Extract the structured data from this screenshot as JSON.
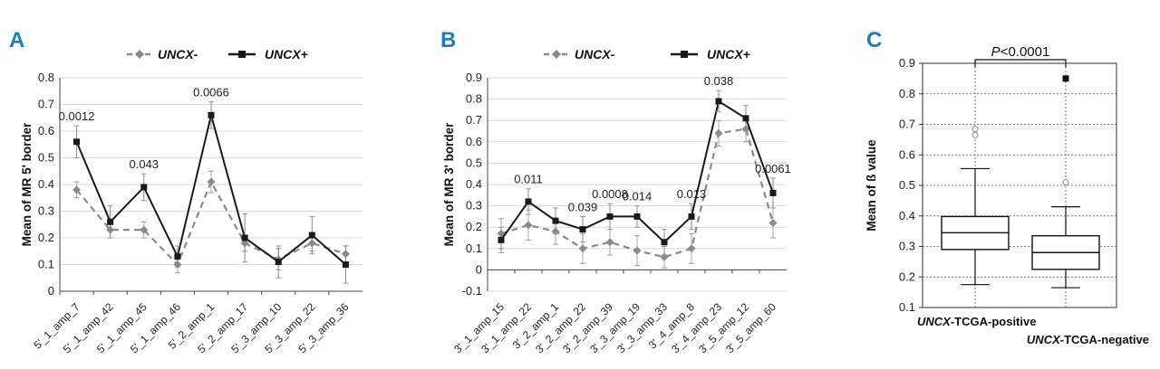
{
  "chart_data": [
    {
      "panel": "A",
      "type": "line",
      "ylabel": "Mean of MR 5' border",
      "ylim": [
        0,
        0.8
      ],
      "yticks": [
        "0",
        "0.1",
        "0.2",
        "0.3",
        "0.4",
        "0.5",
        "0.6",
        "0.7",
        "0.8"
      ],
      "yticks_values": [
        0,
        0.1,
        0.2,
        0.3,
        0.4,
        0.5,
        0.6,
        0.7,
        0.8
      ],
      "categories": [
        "5'_1_amp_7",
        "5'_1_amp_42",
        "5'_1_amp_45",
        "5'_1_amp_46",
        "5'_2_amp_1",
        "5'_2_amp_17",
        "5'_3_amp_10",
        "5'_3_amp_22",
        "5'_3_amp_36"
      ],
      "series": [
        {
          "name": "UNCX-",
          "color": "#8a8a8a",
          "dashed": true,
          "marker": "diamond",
          "values": [
            0.38,
            0.23,
            0.23,
            0.1,
            0.41,
            0.18,
            0.12,
            0.18,
            0.14
          ],
          "errors": [
            0.03,
            0.03,
            0.03,
            0.03,
            0.04,
            0.03,
            0.04,
            0.03,
            0.03
          ]
        },
        {
          "name": "UNCX+",
          "color": "#1a1a1a",
          "dashed": false,
          "marker": "square",
          "values": [
            0.56,
            0.26,
            0.39,
            0.13,
            0.66,
            0.2,
            0.11,
            0.21,
            0.1
          ],
          "errors": [
            0.06,
            0.06,
            0.05,
            0.04,
            0.05,
            0.09,
            0.06,
            0.07,
            0.07
          ]
        }
      ],
      "annotations": [
        {
          "index": 0,
          "text": "0.0012"
        },
        {
          "index": 2,
          "text": "0.043"
        },
        {
          "index": 4,
          "text": "0.0066"
        }
      ]
    },
    {
      "panel": "B",
      "type": "line",
      "ylabel": "Mean of MR 3' border",
      "ylim": [
        -0.1,
        0.9
      ],
      "yticks": [
        "-0.1",
        "0",
        "0.1",
        "0.2",
        "0.3",
        "0.4",
        "0.5",
        "0.6",
        "0.7",
        "0.8",
        "0.9"
      ],
      "yticks_values": [
        -0.1,
        0,
        0.1,
        0.2,
        0.3,
        0.4,
        0.5,
        0.6,
        0.7,
        0.8,
        0.9
      ],
      "categories": [
        "3'_1_amp_15",
        "3'_1_amp_22",
        "3'_2_amp_1",
        "3'_2_amp_22",
        "3'_2_amp_39",
        "3'_3_amp_19",
        "3'_3_amp_33",
        "3'_4_amp_8",
        "3'_4_amp_23",
        "3'_5_amp_12",
        "3'_5_amp_60"
      ],
      "series": [
        {
          "name": "UNCX-",
          "color": "#8a8a8a",
          "dashed": true,
          "marker": "diamond",
          "values": [
            0.17,
            0.21,
            0.18,
            0.1,
            0.13,
            0.09,
            0.06,
            0.1,
            0.64,
            0.66,
            0.22
          ],
          "errors": [
            0.07,
            0.07,
            0.06,
            0.07,
            0.06,
            0.07,
            0.05,
            0.07,
            0.06,
            0.06,
            0.07
          ]
        },
        {
          "name": "UNCX+",
          "color": "#1a1a1a",
          "dashed": false,
          "marker": "square",
          "values": [
            0.14,
            0.32,
            0.23,
            0.19,
            0.25,
            0.25,
            0.13,
            0.25,
            0.79,
            0.71,
            0.36
          ],
          "errors": [
            0.06,
            0.06,
            0.06,
            0.06,
            0.06,
            0.05,
            0.06,
            0.06,
            0.05,
            0.06,
            0.07
          ]
        }
      ],
      "annotations": [
        {
          "index": 1,
          "text": "0.011"
        },
        {
          "index": 3,
          "text": "0.039"
        },
        {
          "index": 4,
          "text": "0.0008"
        },
        {
          "index": 5,
          "text": "0.014"
        },
        {
          "index": 7,
          "text": "0.013"
        },
        {
          "index": 8,
          "text": "0.038"
        },
        {
          "index": 10,
          "text": "0.0061"
        }
      ]
    },
    {
      "panel": "C",
      "type": "box",
      "ylabel": "Mean of ß value",
      "ylim": [
        0.1,
        0.9
      ],
      "yticks": [
        "0.1",
        "0.2",
        "0.3",
        "0.4",
        "0.5",
        "0.6",
        "0.7",
        "0.8",
        "0.9"
      ],
      "yticks_values": [
        0.1,
        0.2,
        0.3,
        0.4,
        0.5,
        0.6,
        0.7,
        0.8,
        0.9
      ],
      "title_prefix": "P",
      "title_suffix": "<0.0001",
      "groups": [
        {
          "gene": "UNCX",
          "suffix": "-TCGA-positive",
          "min": 0.175,
          "q1": 0.29,
          "median": 0.345,
          "q3": 0.398,
          "max": 0.555,
          "outliers": [
            0.665,
            0.685
          ]
        },
        {
          "gene": "UNCX",
          "suffix": "-TCGA-negative",
          "min": 0.165,
          "q1": 0.225,
          "median": 0.28,
          "q3": 0.335,
          "max": 0.43,
          "outliers": [
            0.51
          ],
          "filled_outlier": 0.85
        }
      ]
    }
  ],
  "panels": {
    "A": {
      "letter": "A",
      "legend_minus": "UNCX-",
      "legend_plus": "UNCX+"
    },
    "B": {
      "letter": "B",
      "legend_minus": "UNCX-",
      "legend_plus": "UNCX+"
    },
    "C": {
      "letter": "C"
    }
  }
}
